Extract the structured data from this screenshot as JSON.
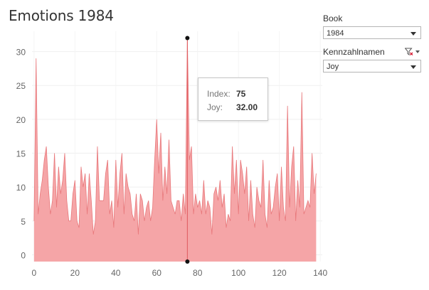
{
  "title": "Emotions 1984",
  "filters": [
    {
      "label": "Book",
      "value": "1984"
    },
    {
      "label": "Kennzahlnamen",
      "value": "Joy"
    }
  ],
  "tooltip": {
    "index_label": "Index:",
    "index_value": "75",
    "joy_label": "Joy:",
    "joy_value": "32.00"
  },
  "chart_data": {
    "type": "area",
    "xlim": [
      -1,
      141
    ],
    "ylim": [
      -1,
      33
    ],
    "x_ticks": [
      0,
      20,
      40,
      60,
      80,
      100,
      120,
      140
    ],
    "y_ticks": [
      0,
      5,
      10,
      15,
      20,
      25,
      30
    ],
    "fill": "#f4a0a2",
    "stroke": "#e8787b",
    "highlight": {
      "x": 75,
      "y": 32
    },
    "series": [
      {
        "x": [
          0,
          1,
          2,
          3,
          4,
          5,
          6,
          7,
          8,
          9,
          10,
          11,
          12,
          13,
          14,
          15,
          16,
          17,
          18,
          19,
          20,
          21,
          22,
          23,
          24,
          25,
          26,
          27,
          28,
          29,
          30,
          31,
          32,
          33,
          34,
          35,
          36,
          37,
          38,
          39,
          40,
          41,
          42,
          43,
          44,
          45,
          46,
          47,
          48,
          49,
          50,
          51,
          52,
          53,
          54,
          55,
          56,
          57,
          58,
          59,
          60,
          61,
          62,
          63,
          64,
          65,
          66,
          67,
          68,
          69,
          70,
          71,
          72,
          73,
          74,
          75,
          76,
          77,
          78,
          79,
          80,
          81,
          82,
          83,
          84,
          85,
          86,
          87,
          88,
          89,
          90,
          91,
          92,
          93,
          94,
          95,
          96,
          97,
          98,
          99,
          100,
          101,
          102,
          103,
          104,
          105,
          106,
          107,
          108,
          109,
          110,
          111,
          112,
          113,
          114,
          115,
          116,
          117,
          118,
          119,
          120,
          121,
          122,
          123,
          124,
          125,
          126,
          127,
          128,
          129,
          130,
          131,
          132,
          133,
          134,
          135,
          136,
          137,
          138
        ],
        "y": [
          5,
          29,
          6,
          9,
          11,
          14,
          16,
          10,
          6,
          8,
          15,
          7,
          13,
          9,
          11,
          15,
          8,
          5,
          5,
          9,
          11,
          5,
          4,
          13,
          10,
          12,
          6,
          12,
          8,
          3,
          5,
          16,
          8,
          8,
          8,
          12,
          14,
          6,
          8,
          4,
          14,
          7,
          12,
          15,
          6,
          12,
          10,
          9,
          6,
          5,
          9,
          3,
          9,
          8,
          5,
          7,
          8,
          5,
          7,
          14,
          20,
          12,
          18,
          8,
          13,
          9,
          17,
          8,
          7,
          6,
          8,
          8,
          5,
          9,
          6,
          32,
          14,
          16,
          6,
          9,
          7,
          8,
          6,
          11,
          6,
          8,
          7,
          3,
          9,
          10,
          8,
          11,
          7,
          9,
          4,
          6,
          5,
          16,
          9,
          14,
          6,
          14,
          12,
          9,
          13,
          5,
          11,
          6,
          4,
          10,
          8,
          7,
          14,
          6,
          4,
          11,
          6,
          7,
          10,
          12,
          5,
          13,
          7,
          5,
          22,
          7,
          13,
          16,
          5,
          11,
          7,
          24,
          6,
          7,
          8,
          7,
          15,
          9,
          12
        ]
      }
    ]
  }
}
